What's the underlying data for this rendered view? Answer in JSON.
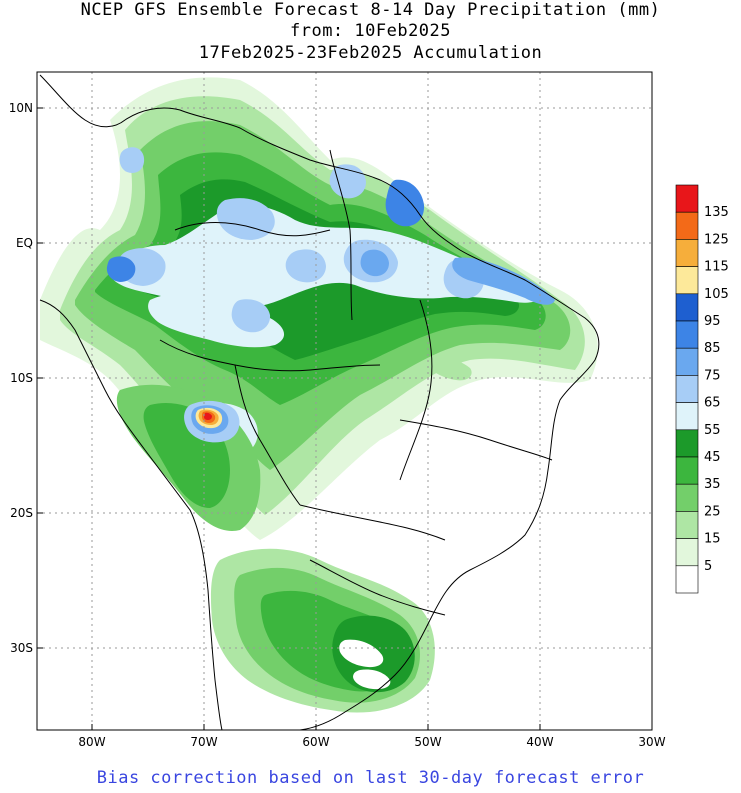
{
  "title": {
    "line1": "NCEP GFS Ensemble Forecast 8-14 Day Precipitation (mm)",
    "line2": "from: 10Feb2025",
    "line3": "17Feb2025-23Feb2025 Accumulation"
  },
  "axes": {
    "lat_labels": [
      "10N",
      "EQ",
      "10S",
      "20S",
      "30S"
    ],
    "lon_labels": [
      "80W",
      "70W",
      "60W",
      "50W",
      "40W",
      "30W"
    ]
  },
  "legend": {
    "labels": [
      "135",
      "125",
      "115",
      "105",
      "95",
      "85",
      "75",
      "65",
      "55",
      "45",
      "35",
      "25",
      "15",
      "5"
    ],
    "colors": [
      "#e8161a",
      "#f36a18",
      "#f6ae3b",
      "#fde99a",
      "#1e5fd0",
      "#3d84e6",
      "#6aa8ef",
      "#a7cdf6",
      "#dff3fa",
      "#1c9a2a",
      "#3cb63e",
      "#73cf6a",
      "#aee6a4",
      "#e2f7dc",
      "#ffffff"
    ]
  },
  "footer": "Bias correction based on last 30-day forecast error"
}
